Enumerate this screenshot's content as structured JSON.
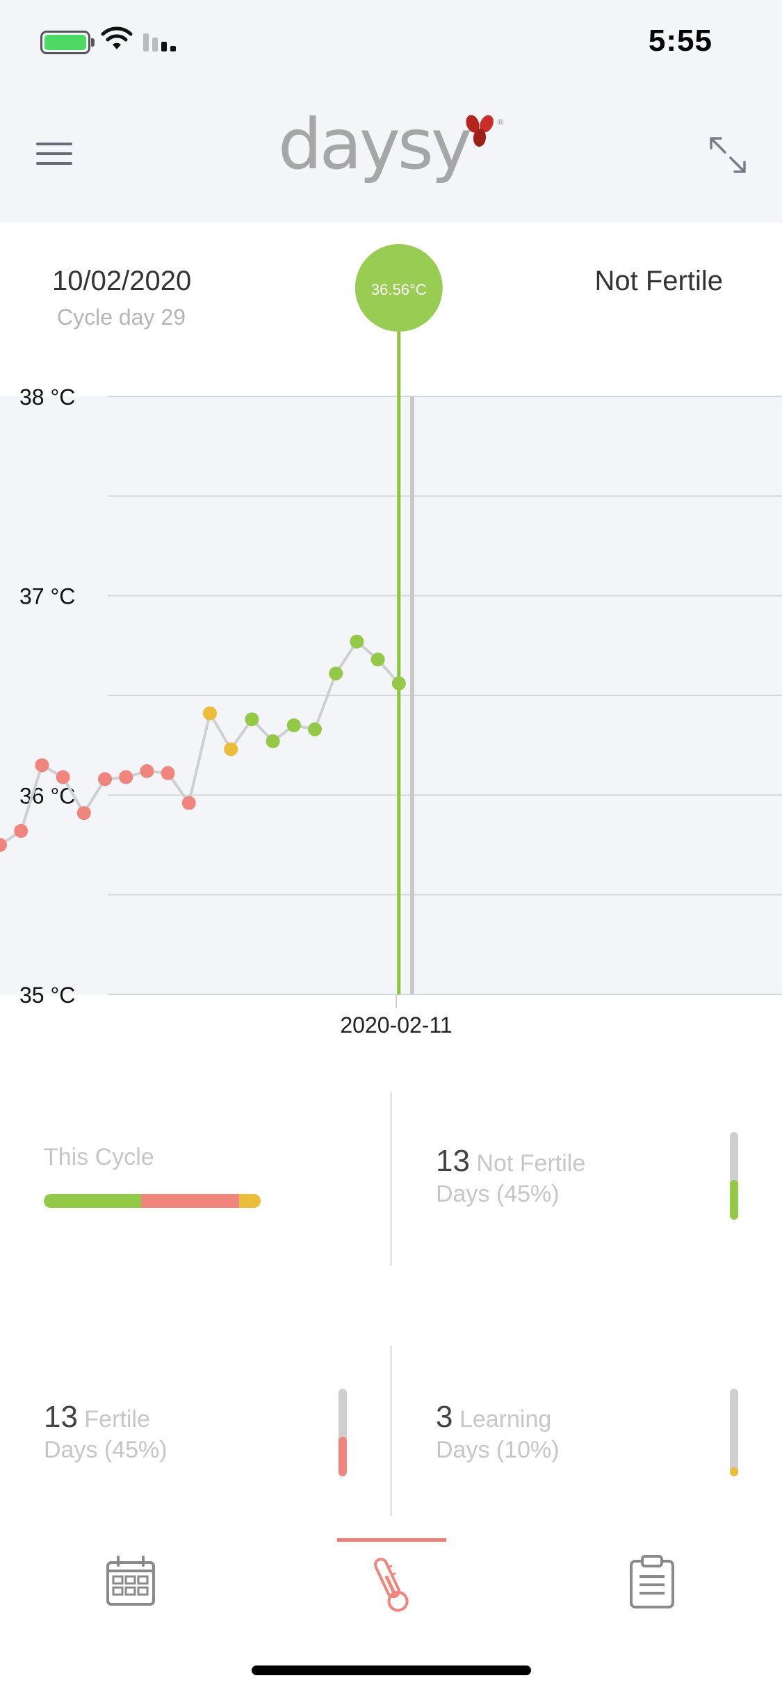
{
  "status_bar": {
    "time": "5:55"
  },
  "header": {
    "logo_text": "daysy",
    "logo_registered": "®"
  },
  "selected_day": {
    "date": "10/02/2020",
    "cycle_day": "Cycle day 29",
    "status": "Not Fertile",
    "temperature": "36.56°C"
  },
  "chart_data": {
    "type": "line",
    "y_unit": "°C",
    "yticks": [
      "38 °C",
      "37 °C",
      "36 °C",
      "35 °C"
    ],
    "ylim": [
      35,
      38
    ],
    "grid": true,
    "xlabel_marker": "2020-02-11",
    "status_colors": {
      "fertile": "#ef857d",
      "learning": "#ecbd3a",
      "not_fertile": "#94c947"
    },
    "points": [
      {
        "i": 0,
        "y": 35.75,
        "status": "fertile"
      },
      {
        "i": 1,
        "y": 35.82,
        "status": "fertile"
      },
      {
        "i": 2,
        "y": 36.15,
        "status": "fertile"
      },
      {
        "i": 3,
        "y": 36.09,
        "status": "fertile"
      },
      {
        "i": 4,
        "y": 35.91,
        "status": "fertile"
      },
      {
        "i": 5,
        "y": 36.08,
        "status": "fertile"
      },
      {
        "i": 6,
        "y": 36.09,
        "status": "fertile"
      },
      {
        "i": 7,
        "y": 36.12,
        "status": "fertile"
      },
      {
        "i": 8,
        "y": 36.11,
        "status": "fertile"
      },
      {
        "i": 9,
        "y": 35.96,
        "status": "fertile"
      },
      {
        "i": 10,
        "y": 36.41,
        "status": "learning"
      },
      {
        "i": 11,
        "y": 36.23,
        "status": "learning"
      },
      {
        "i": 12,
        "y": 36.38,
        "status": "not_fertile"
      },
      {
        "i": 13,
        "y": 36.27,
        "status": "not_fertile"
      },
      {
        "i": 14,
        "y": 36.35,
        "status": "not_fertile"
      },
      {
        "i": 15,
        "y": 36.33,
        "status": "not_fertile"
      },
      {
        "i": 16,
        "y": 36.61,
        "status": "not_fertile"
      },
      {
        "i": 17,
        "y": 36.77,
        "status": "not_fertile"
      },
      {
        "i": 18,
        "y": 36.68,
        "status": "not_fertile"
      },
      {
        "i": 19,
        "y": 36.56,
        "status": "not_fertile"
      }
    ]
  },
  "stats": {
    "this_cycle_label": "This Cycle",
    "cycle_bar": [
      {
        "status": "not_fertile",
        "percent": 45
      },
      {
        "status": "fertile",
        "percent": 45
      },
      {
        "status": "learning",
        "percent": 10
      }
    ],
    "not_fertile": {
      "count": "13",
      "label": "Not Fertile",
      "days": "Days (45%)",
      "fraction": 0.45
    },
    "fertile": {
      "count": "13",
      "label": "Fertile",
      "days": "Days (45%)",
      "fraction": 0.45
    },
    "learning": {
      "count": "3",
      "label": "Learning",
      "days": "Days (10%)",
      "fraction": 0.1
    }
  },
  "tabs": [
    {
      "name": "calendar-icon",
      "active": false
    },
    {
      "name": "thermometer-icon",
      "active": true
    },
    {
      "name": "clipboard-icon",
      "active": false
    }
  ]
}
